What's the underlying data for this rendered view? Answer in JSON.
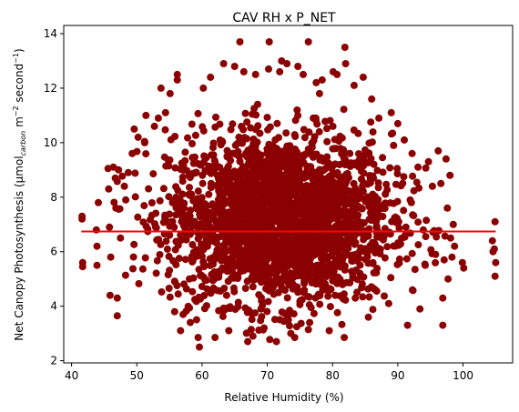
{
  "chart_data": {
    "type": "scatter",
    "title": "CAV RH x P_NET",
    "xlabel": "Relative Humidity (%)",
    "ylabel": {
      "prefix": "Net Canopy Photosynthesis (",
      "mu": "μmol",
      "carbon": "carbon",
      "m": " m",
      "m_exp": "−2",
      "second": " second",
      "s_exp": "−1",
      "close": ")"
    },
    "xlim": [
      38.8,
      107.6
    ],
    "ylim": [
      1.92,
      14.3
    ],
    "xticks": [
      40,
      50,
      60,
      70,
      80,
      90,
      100
    ],
    "yticks": [
      2,
      4,
      6,
      8,
      10,
      12,
      14
    ],
    "grid": false,
    "point_color": "#8b0000",
    "trend_color": "#ff0000",
    "trendline": {
      "x": [
        41.5,
        105
      ],
      "y": [
        6.74,
        6.74
      ]
    },
    "cloud": {
      "center_x": 72,
      "center_y": 7.2,
      "spread_x": 8.5,
      "spread_y": 1.55,
      "count": 2600
    },
    "outliers": [
      [
        41.6,
        7.3
      ],
      [
        41.6,
        7.2
      ],
      [
        41.7,
        5.6
      ],
      [
        41.7,
        5.45
      ],
      [
        43.8,
        6.8
      ],
      [
        43.9,
        6.2
      ],
      [
        43.9,
        5.5
      ],
      [
        44.1,
        7.8
      ],
      [
        45.6,
        9.05
      ],
      [
        45.7,
        8.3
      ],
      [
        45.8,
        6.9
      ],
      [
        45.9,
        4.4
      ],
      [
        46.0,
        5.8
      ],
      [
        46.4,
        9.1
      ],
      [
        46.7,
        8.7
      ],
      [
        46.8,
        7.6
      ],
      [
        47.0,
        4.3
      ],
      [
        47.0,
        3.65
      ],
      [
        47.2,
        9.0
      ],
      [
        47.5,
        6.5
      ],
      [
        48.1,
        8.4
      ],
      [
        48.3,
        7.9
      ],
      [
        48.7,
        8.9
      ],
      [
        49.3,
        9.6
      ],
      [
        49.6,
        10.5
      ],
      [
        50.2,
        10.2
      ],
      [
        51.2,
        10.0
      ],
      [
        51.4,
        11.0
      ],
      [
        52.7,
        10.6
      ],
      [
        53.3,
        10.9
      ],
      [
        53.7,
        12.0
      ],
      [
        54.4,
        11.1
      ],
      [
        55.1,
        11.8
      ],
      [
        56.2,
        12.5
      ],
      [
        56.2,
        12.3
      ],
      [
        55.8,
        3.8
      ],
      [
        56.7,
        3.1
      ],
      [
        57.1,
        3.7
      ],
      [
        58.2,
        3.4
      ],
      [
        59.4,
        2.85
      ],
      [
        59.6,
        2.5
      ],
      [
        60.2,
        12.0
      ],
      [
        61.3,
        12.4
      ],
      [
        62.0,
        2.85
      ],
      [
        63.3,
        12.9
      ],
      [
        64.1,
        3.1
      ],
      [
        65.0,
        12.8
      ],
      [
        65.8,
        13.7
      ],
      [
        66.4,
        12.6
      ],
      [
        67.0,
        2.7
      ],
      [
        67.8,
        2.9
      ],
      [
        68.2,
        12.5
      ],
      [
        69.5,
        3.2
      ],
      [
        70.3,
        13.7
      ],
      [
        70.2,
        12.7
      ],
      [
        71.4,
        2.7
      ],
      [
        71.9,
        12.6
      ],
      [
        72.2,
        13.0
      ],
      [
        73.0,
        12.9
      ],
      [
        73.6,
        3.0
      ],
      [
        74.2,
        2.85
      ],
      [
        74.7,
        12.8
      ],
      [
        75.5,
        12.5
      ],
      [
        76.3,
        13.7
      ],
      [
        76.5,
        3.4
      ],
      [
        77.5,
        12.2
      ],
      [
        78.0,
        11.8
      ],
      [
        78.4,
        12.3
      ],
      [
        79.5,
        3.1
      ],
      [
        80.1,
        12.6
      ],
      [
        80.7,
        12.5
      ],
      [
        81.9,
        13.5
      ],
      [
        82.0,
        12.9
      ],
      [
        81.8,
        2.85
      ],
      [
        83.3,
        12.1
      ],
      [
        84.7,
        12.4
      ],
      [
        85.5,
        3.6
      ],
      [
        86.0,
        11.6
      ],
      [
        87.1,
        10.9
      ],
      [
        88.6,
        4.1
      ],
      [
        89.0,
        11.1
      ],
      [
        90.0,
        10.7
      ],
      [
        91.0,
        10.1
      ],
      [
        91.5,
        3.3
      ],
      [
        92.2,
        9.6
      ],
      [
        93.1,
        9.1
      ],
      [
        93.4,
        3.9
      ],
      [
        94.2,
        5.5
      ],
      [
        94.7,
        9.3
      ],
      [
        95.3,
        8.4
      ],
      [
        95.8,
        5.9
      ],
      [
        96.2,
        9.7
      ],
      [
        96.6,
        8.5
      ],
      [
        96.9,
        4.3
      ],
      [
        96.9,
        3.3
      ],
      [
        97.1,
        5.7
      ],
      [
        97.4,
        9.4
      ],
      [
        97.6,
        7.6
      ],
      [
        97.7,
        5.0
      ],
      [
        98.0,
        8.8
      ],
      [
        98.1,
        6.5
      ],
      [
        98.3,
        5.8
      ],
      [
        98.5,
        7.0
      ],
      [
        98.7,
        6.2
      ],
      [
        99.9,
        5.6
      ],
      [
        100.1,
        5.4
      ],
      [
        104.5,
        6.4
      ],
      [
        104.6,
        6.0
      ],
      [
        104.9,
        7.1
      ],
      [
        104.9,
        5.1
      ],
      [
        105.0,
        5.6
      ],
      [
        104.8,
        6.1
      ]
    ]
  }
}
